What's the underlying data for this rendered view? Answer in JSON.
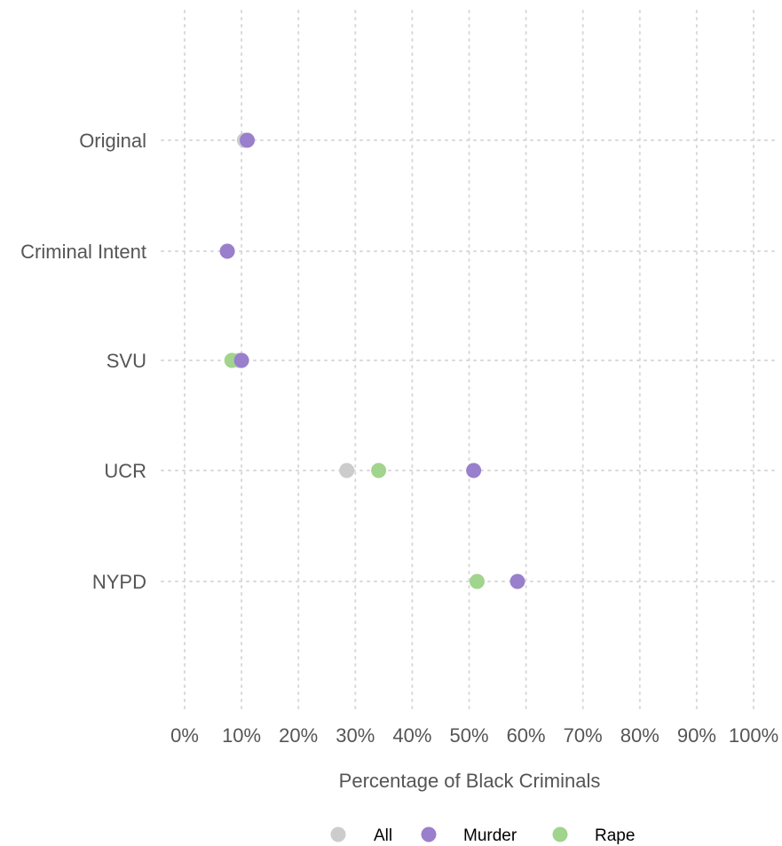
{
  "chart_data": {
    "type": "scatter",
    "xlabel": "Percentage of Black Criminals",
    "ylabel": "",
    "categories": [
      "Original",
      "Criminal Intent",
      "SVU",
      "UCR",
      "NYPD"
    ],
    "x_ticks": [
      "0%",
      "10%",
      "20%",
      "30%",
      "40%",
      "50%",
      "60%",
      "70%",
      "80%",
      "90%",
      "100%"
    ],
    "xlim": [
      0,
      100
    ],
    "grid": true,
    "legend_position": "bottom",
    "series": [
      {
        "name": "All",
        "color": "#cccccc",
        "values": [
          10.5,
          7.5,
          9.5,
          28.5,
          null
        ]
      },
      {
        "name": "Rape",
        "color": "#a1d48c",
        "values": [
          null,
          null,
          8.3,
          34.1,
          51.4
        ]
      },
      {
        "name": "Murder",
        "color": "#9a7fcc",
        "values": [
          11,
          7.5,
          10,
          50.8,
          58.5
        ]
      }
    ],
    "legend": [
      {
        "name": "All",
        "color": "#cccccc"
      },
      {
        "name": "Murder",
        "color": "#9a7fcc"
      },
      {
        "name": "Rape",
        "color": "#a1d48c"
      }
    ]
  }
}
